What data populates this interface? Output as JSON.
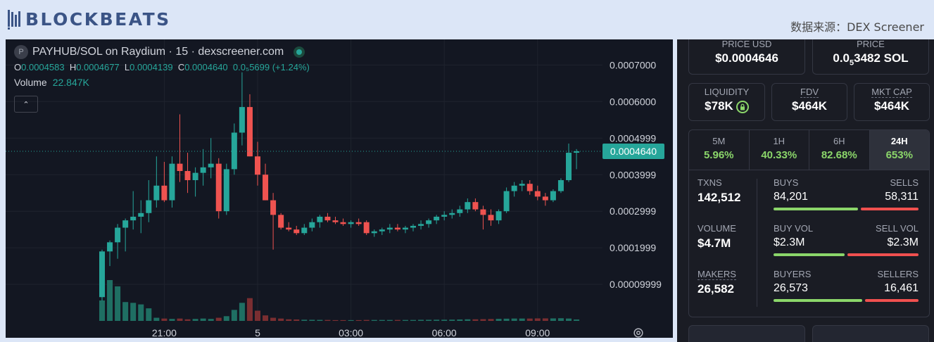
{
  "header": {
    "brand": "BLOCKBEATS",
    "source": "数据来源：DEX Screener"
  },
  "legend": {
    "pair": "PAYHUB/SOL on Raydium · 15 · dexscreener.com",
    "pair_icon": "P",
    "ohlc": [
      {
        "k": "O",
        "v": "0.0004583"
      },
      {
        "k": "H",
        "v": "0.0004677"
      },
      {
        "k": "L",
        "v": "0.0004139"
      },
      {
        "k": "C",
        "v": "0.0004640"
      }
    ],
    "change": "0.0₅5699 (+1.24%)",
    "volume_label": "Volume",
    "volume_value": "22.847K"
  },
  "chart_data": {
    "type": "candlestick",
    "ylim": [
      0,
      0.00077
    ],
    "y_tick_labels": [
      {
        "label": "0.0007000",
        "value": 0.0007
      },
      {
        "label": "0.0006000",
        "value": 0.0006
      },
      {
        "label": "0.0004999",
        "value": 0.0004999
      },
      {
        "label": "0.0003999",
        "value": 0.0003999
      },
      {
        "label": "0.0002999",
        "value": 0.0002999
      },
      {
        "label": "0.0001999",
        "value": 0.0001999
      },
      {
        "label": "0.00009999",
        "value": 9.999e-05
      }
    ],
    "x_tick_labels": [
      {
        "label": "21:00",
        "index": 8
      },
      {
        "label": "5",
        "index": 20
      },
      {
        "label": "03:00",
        "index": 32
      },
      {
        "label": "06:00",
        "index": 44
      },
      {
        "label": "09:00",
        "index": 56
      }
    ],
    "last_price_label": "0.0004640",
    "last_price": 0.000464,
    "candles": [
      {
        "o": 6.5e-05,
        "h": 0.000195,
        "l": 5.5e-05,
        "c": 0.00019,
        "v": 260
      },
      {
        "o": 0.00019,
        "h": 0.00022,
        "l": 0.00015,
        "c": 0.000215,
        "v": 520
      },
      {
        "o": 0.000215,
        "h": 0.000265,
        "l": 0.00017,
        "c": 0.000255,
        "v": 440
      },
      {
        "o": 0.000255,
        "h": 0.00028,
        "l": 0.00019,
        "c": 0.000275,
        "v": 240
      },
      {
        "o": 0.000275,
        "h": 0.000355,
        "l": 0.00025,
        "c": 0.000285,
        "v": 230
      },
      {
        "o": 0.000285,
        "h": 0.00033,
        "l": 0.00024,
        "c": 0.000295,
        "v": 210
      },
      {
        "o": 0.000295,
        "h": 0.000385,
        "l": 0.00027,
        "c": 0.00033,
        "v": 160
      },
      {
        "o": 0.00033,
        "h": 0.00045,
        "l": 0.00031,
        "c": 0.00037,
        "v": 40
      },
      {
        "o": 0.00037,
        "h": 0.000435,
        "l": 0.000325,
        "c": 0.00033,
        "v": 30
      },
      {
        "o": 0.00033,
        "h": 0.00045,
        "l": 0.00031,
        "c": 0.00043,
        "v": 25
      },
      {
        "o": 0.00043,
        "h": 0.000565,
        "l": 0.00038,
        "c": 0.00041,
        "v": 30
      },
      {
        "o": 0.00041,
        "h": 0.00046,
        "l": 0.00035,
        "c": 0.000385,
        "v": 20
      },
      {
        "o": 0.000385,
        "h": 0.00042,
        "l": 0.00034,
        "c": 0.000405,
        "v": 25
      },
      {
        "o": 0.000405,
        "h": 0.00047,
        "l": 0.00037,
        "c": 0.00042,
        "v": 30
      },
      {
        "o": 0.00042,
        "h": 0.0005,
        "l": 0.00039,
        "c": 0.00043,
        "v": 25
      },
      {
        "o": 0.00043,
        "h": 0.000445,
        "l": 0.00028,
        "c": 0.0003,
        "v": 40
      },
      {
        "o": 0.0003,
        "h": 0.00043,
        "l": 0.00029,
        "c": 0.000415,
        "v": 60
      },
      {
        "o": 0.000415,
        "h": 0.00054,
        "l": 0.0004,
        "c": 0.000515,
        "v": 140
      },
      {
        "o": 0.000515,
        "h": 0.00068,
        "l": 0.00048,
        "c": 0.000585,
        "v": 230
      },
      {
        "o": 0.000585,
        "h": 0.00062,
        "l": 0.00045,
        "c": 0.00045,
        "v": 290
      },
      {
        "o": 0.00045,
        "h": 0.00049,
        "l": 0.00037,
        "c": 0.0004,
        "v": 130
      },
      {
        "o": 0.0004,
        "h": 0.00043,
        "l": 0.00033,
        "c": 0.00033,
        "v": 70
      },
      {
        "o": 0.00033,
        "h": 0.00035,
        "l": 0.000195,
        "c": 0.00029,
        "v": 40
      },
      {
        "o": 0.00029,
        "h": 0.000295,
        "l": 0.00025,
        "c": 0.000255,
        "v": 30
      },
      {
        "o": 0.000255,
        "h": 0.00027,
        "l": 0.000245,
        "c": 0.00025,
        "v": 20
      },
      {
        "o": 0.00025,
        "h": 0.00026,
        "l": 0.000235,
        "c": 0.00024,
        "v": 18
      },
      {
        "o": 0.00024,
        "h": 0.000265,
        "l": 0.000235,
        "c": 0.000255,
        "v": 15
      },
      {
        "o": 0.000255,
        "h": 0.00028,
        "l": 0.000245,
        "c": 0.00027,
        "v": 14
      },
      {
        "o": 0.00027,
        "h": 0.00029,
        "l": 0.000255,
        "c": 0.000285,
        "v": 13
      },
      {
        "o": 0.000285,
        "h": 0.000295,
        "l": 0.00027,
        "c": 0.000275,
        "v": 12
      },
      {
        "o": 0.000275,
        "h": 0.000285,
        "l": 0.000265,
        "c": 0.00027,
        "v": 10
      },
      {
        "o": 0.00027,
        "h": 0.00028,
        "l": 0.00026,
        "c": 0.000265,
        "v": 10
      },
      {
        "o": 0.000265,
        "h": 0.000275,
        "l": 0.000255,
        "c": 0.00027,
        "v": 10
      },
      {
        "o": 0.00027,
        "h": 0.00028,
        "l": 0.00026,
        "c": 0.000265,
        "v": 10
      },
      {
        "o": 0.00027,
        "h": 0.000275,
        "l": 0.000235,
        "c": 0.00024,
        "v": 12
      },
      {
        "o": 0.00024,
        "h": 0.00025,
        "l": 0.00023,
        "c": 0.000245,
        "v": 12
      },
      {
        "o": 0.000245,
        "h": 0.000255,
        "l": 0.000235,
        "c": 0.00025,
        "v": 12
      },
      {
        "o": 0.00025,
        "h": 0.000265,
        "l": 0.00024,
        "c": 0.000255,
        "v": 12
      },
      {
        "o": 0.000255,
        "h": 0.000265,
        "l": 0.000245,
        "c": 0.00025,
        "v": 12
      },
      {
        "o": 0.00025,
        "h": 0.00026,
        "l": 0.00024,
        "c": 0.000255,
        "v": 12
      },
      {
        "o": 0.000255,
        "h": 0.000265,
        "l": 0.000245,
        "c": 0.00026,
        "v": 12
      },
      {
        "o": 0.00026,
        "h": 0.000275,
        "l": 0.00025,
        "c": 0.000265,
        "v": 14
      },
      {
        "o": 0.000265,
        "h": 0.00028,
        "l": 0.000255,
        "c": 0.000275,
        "v": 14
      },
      {
        "o": 0.000275,
        "h": 0.00029,
        "l": 0.000265,
        "c": 0.000285,
        "v": 15
      },
      {
        "o": 0.000285,
        "h": 0.0003,
        "l": 0.000275,
        "c": 0.00029,
        "v": 15
      },
      {
        "o": 0.00029,
        "h": 0.000305,
        "l": 0.00028,
        "c": 0.000295,
        "v": 16
      },
      {
        "o": 0.000295,
        "h": 0.000315,
        "l": 0.000285,
        "c": 0.000305,
        "v": 18
      },
      {
        "o": 0.000305,
        "h": 0.000335,
        "l": 0.000295,
        "c": 0.000325,
        "v": 20
      },
      {
        "o": 0.000325,
        "h": 0.000335,
        "l": 0.0003,
        "c": 0.000305,
        "v": 20
      },
      {
        "o": 0.000305,
        "h": 0.000315,
        "l": 0.00025,
        "c": 0.00029,
        "v": 22
      },
      {
        "o": 0.00029,
        "h": 0.000305,
        "l": 0.00026,
        "c": 0.000275,
        "v": 24
      },
      {
        "o": 0.000275,
        "h": 0.000305,
        "l": 0.000265,
        "c": 0.0003,
        "v": 26
      },
      {
        "o": 0.0003,
        "h": 0.000365,
        "l": 0.000295,
        "c": 0.000355,
        "v": 28
      },
      {
        "o": 0.000355,
        "h": 0.00038,
        "l": 0.00034,
        "c": 0.00037,
        "v": 30
      },
      {
        "o": 0.00037,
        "h": 0.000385,
        "l": 0.000355,
        "c": 0.000375,
        "v": 30
      },
      {
        "o": 0.000375,
        "h": 0.000385,
        "l": 0.000345,
        "c": 0.000355,
        "v": 30
      },
      {
        "o": 0.000355,
        "h": 0.00037,
        "l": 0.00033,
        "c": 0.00034,
        "v": 32
      },
      {
        "o": 0.00034,
        "h": 0.00035,
        "l": 0.000315,
        "c": 0.00033,
        "v": 32
      },
      {
        "o": 0.00033,
        "h": 0.00036,
        "l": 0.000325,
        "c": 0.000355,
        "v": 32
      },
      {
        "o": 0.000355,
        "h": 0.00039,
        "l": 0.00035,
        "c": 0.000385,
        "v": 34
      },
      {
        "o": 0.000385,
        "h": 0.000485,
        "l": 0.00038,
        "c": 0.00046,
        "v": 30
      },
      {
        "o": 0.00046,
        "h": 0.00047,
        "l": 0.000415,
        "c": 0.000464,
        "v": 18
      }
    ]
  },
  "stats": {
    "price_usd": {
      "label": "PRICE USD",
      "value": "$0.0004646"
    },
    "price_sol": {
      "label": "PRICE",
      "value_pre": "0.0",
      "value_sub": "5",
      "value_post": "3482 SOL"
    },
    "liquidity": {
      "label": "LIQUIDITY",
      "value": "$78K"
    },
    "fdv": {
      "label": "FDV",
      "value": "$464K"
    },
    "mcap": {
      "label": "MKT CAP",
      "value": "$464K"
    },
    "tabs": [
      {
        "label": "5M",
        "value": "5.96%"
      },
      {
        "label": "1H",
        "value": "40.33%"
      },
      {
        "label": "6H",
        "value": "82.68%"
      },
      {
        "label": "24H",
        "value": "653%"
      }
    ],
    "txns": {
      "label": "TXNS",
      "value": "142,512",
      "buys_label": "BUYS",
      "buys": "84,201",
      "sells_label": "SELLS",
      "sells": "58,311",
      "buy_fraction": 0.59
    },
    "volume": {
      "label": "VOLUME",
      "value": "$4.7M",
      "buys_label": "BUY VOL",
      "buys": "$2.3M",
      "sells_label": "SELL VOL",
      "sells": "$2.3M",
      "buy_fraction": 0.5
    },
    "makers": {
      "label": "MAKERS",
      "value": "26,582",
      "buys_label": "BUYERS",
      "buys": "26,573",
      "sells_label": "SELLERS",
      "sells": "16,461",
      "buy_fraction": 0.62
    }
  },
  "colors": {
    "up": "#26a69a",
    "down": "#ef5350",
    "up_vol": "#1f6f63",
    "down_vol": "#7a2e31",
    "accent_green": "#8bd66a"
  }
}
